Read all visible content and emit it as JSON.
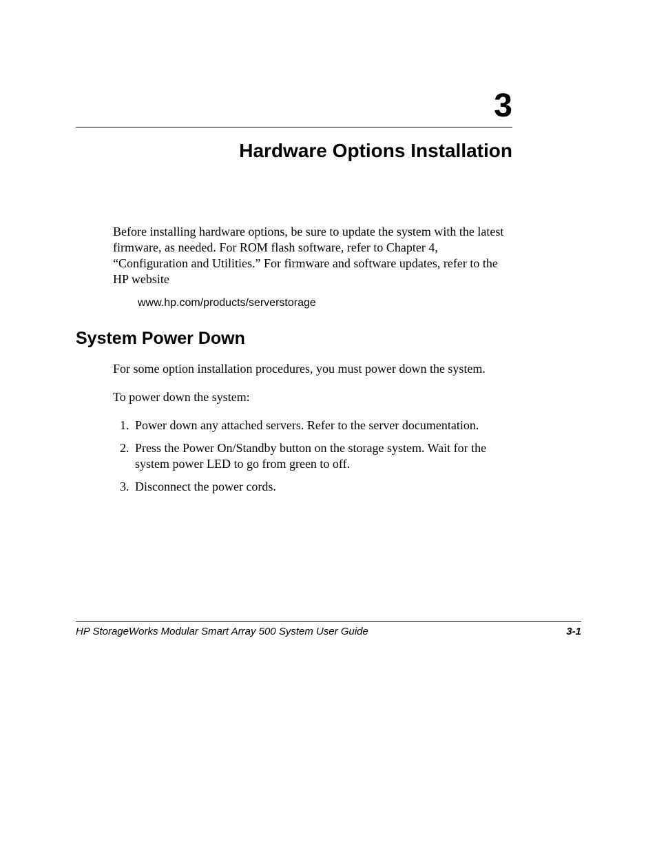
{
  "chapter": {
    "number": "3",
    "title": "Hardware Options Installation"
  },
  "intro": {
    "paragraph": "Before installing hardware options, be sure to update the system with the latest firmware, as needed. For ROM flash software, refer to Chapter 4, “Configuration and Utilities.” For firmware and software updates, refer to the HP website",
    "url": "www.hp.com/products/serverstorage"
  },
  "section": {
    "heading": "System Power Down",
    "para1": "For some option installation procedures, you must power down the system.",
    "para2": "To power down the system:",
    "steps": [
      "Power down any attached servers. Refer to the server documentation.",
      "Press the Power On/Standby button on the storage system. Wait for the system power LED to go from green to off.",
      "Disconnect the power cords."
    ]
  },
  "footer": {
    "left": "HP StorageWorks Modular Smart Array 500 System User Guide",
    "right": "3-1"
  }
}
